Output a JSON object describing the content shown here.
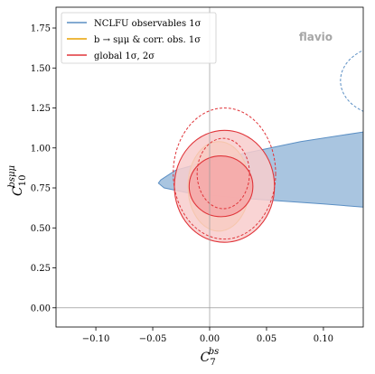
{
  "chart_data": {
    "type": "contour",
    "xlabel_base": "C",
    "xlabel_sub": "7",
    "xlabel_sup": "bs",
    "ylabel_base": "C",
    "ylabel_sub": "10",
    "ylabel_sup": "bsμμ",
    "xlim": [
      -0.135,
      0.135
    ],
    "ylim": [
      -0.12,
      1.88
    ],
    "xticks": [
      -0.1,
      -0.05,
      0.0,
      0.05,
      0.1
    ],
    "xtick_labels": [
      "−0.10",
      "−0.05",
      "0.00",
      "0.05",
      "0.10"
    ],
    "yticks": [
      0.0,
      0.25,
      0.5,
      0.75,
      1.0,
      1.25,
      1.5,
      1.75
    ],
    "ytick_labels": [
      "0.00",
      "0.25",
      "0.50",
      "0.75",
      "1.00",
      "1.25",
      "1.50",
      "1.75"
    ],
    "watermark": "flavio",
    "legend": [
      {
        "label": "NCLFU observables 1σ",
        "color": "#5b8fc4"
      },
      {
        "label": "b → sμμ & corr. obs. 1σ",
        "color": "#e8a200"
      },
      {
        "label": "global 1σ, 2σ",
        "color": "#e0353a"
      }
    ],
    "regions": [
      {
        "name": "NCLFU observables 1σ",
        "fill": "#a9c5e0",
        "stroke": "#5b8fc4",
        "points": [
          [
            0.135,
            1.1
          ],
          [
            0.08,
            1.04
          ],
          [
            0.04,
            0.98
          ],
          [
            0.0,
            0.92
          ],
          [
            -0.03,
            0.86
          ],
          [
            -0.043,
            0.8
          ],
          [
            -0.045,
            0.78
          ],
          [
            -0.04,
            0.75
          ],
          [
            -0.02,
            0.72
          ],
          [
            0.02,
            0.69
          ],
          [
            0.06,
            0.67
          ],
          [
            0.1,
            0.65
          ],
          [
            0.135,
            0.63
          ]
        ]
      },
      {
        "name": "b → sμμ & corr. obs. 1σ",
        "fill": "#f3c98c",
        "stroke": "#e8a200",
        "center": [
          0.008,
          0.76
        ],
        "rx": 0.027,
        "ry": 0.28,
        "rotation": 0
      },
      {
        "name": "global 2σ",
        "fill": "#f8cccc",
        "stroke": "#e0353a",
        "center": [
          0.013,
          0.76
        ],
        "rx": 0.044,
        "ry": 0.35,
        "rotation": 0
      },
      {
        "name": "global 1σ",
        "fill": "#f4a7a7",
        "stroke": "#e0353a",
        "center": [
          0.01,
          0.76
        ],
        "rx": 0.028,
        "ry": 0.19,
        "rotation": 0
      }
    ],
    "dashed_contours": [
      {
        "name": "global 1σ (dashed)",
        "stroke": "#e0353a",
        "center": [
          0.012,
          0.84
        ],
        "rx": 0.023,
        "ry": 0.22
      },
      {
        "name": "global 2σ (dashed)",
        "stroke": "#e0353a",
        "center": [
          0.013,
          0.84
        ],
        "rx": 0.045,
        "ry": 0.41
      },
      {
        "name": "NCLFU 2σ (dashed, partial)",
        "stroke": "#5b8fc4",
        "center": [
          0.155,
          1.42
        ],
        "rx": 0.04,
        "ry": 0.22
      }
    ],
    "reference_lines": {
      "x": 0.0,
      "y": 0.0
    }
  }
}
